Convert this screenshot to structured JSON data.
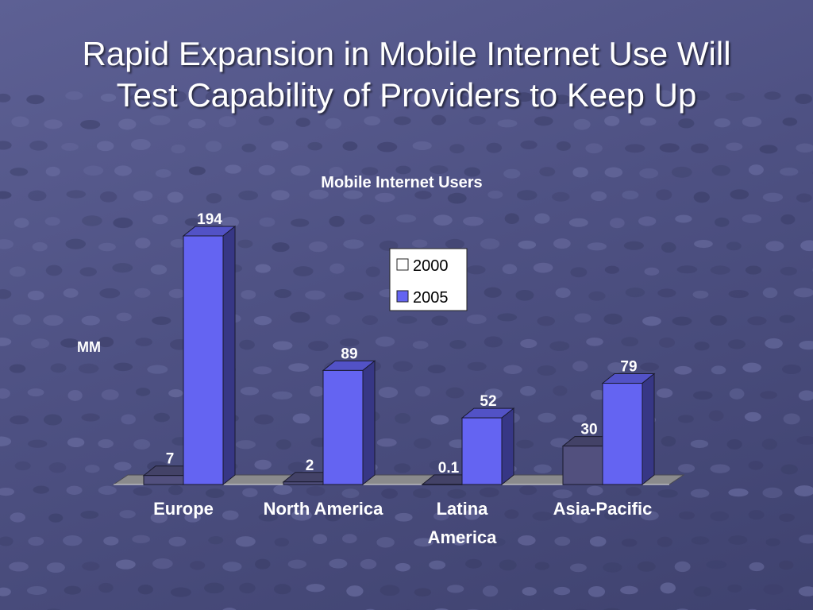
{
  "slide": {
    "title_line1": "Rapid Expansion in Mobile Internet Use Will",
    "title_line2": "Test Capability of Providers to Keep Up"
  },
  "colors": {
    "background": "#55588a",
    "bar_2000": "#52507e",
    "bar_2005": "#6464f2",
    "legend_bg": "#ffffff",
    "text": "#ffffff",
    "floor": "#8a8a8c"
  },
  "chart_data": {
    "type": "bar",
    "title": "Mobile Internet Users",
    "ylabel": "MM",
    "xlabel": "",
    "categories": [
      [
        "Europe"
      ],
      [
        "North America"
      ],
      [
        "Latina",
        "America"
      ],
      [
        "Asia-Pacific"
      ]
    ],
    "series": [
      {
        "name": "2000",
        "values": [
          7,
          2,
          0.1,
          30
        ]
      },
      {
        "name": "2005",
        "values": [
          194,
          89,
          52,
          79
        ]
      }
    ],
    "data_labels": [
      [
        "7",
        "2",
        "0.1",
        "30"
      ],
      [
        "194",
        "89",
        "52",
        "79"
      ]
    ],
    "ylim": [
      0,
      194
    ],
    "grid": false,
    "legend_position": "top-right"
  }
}
